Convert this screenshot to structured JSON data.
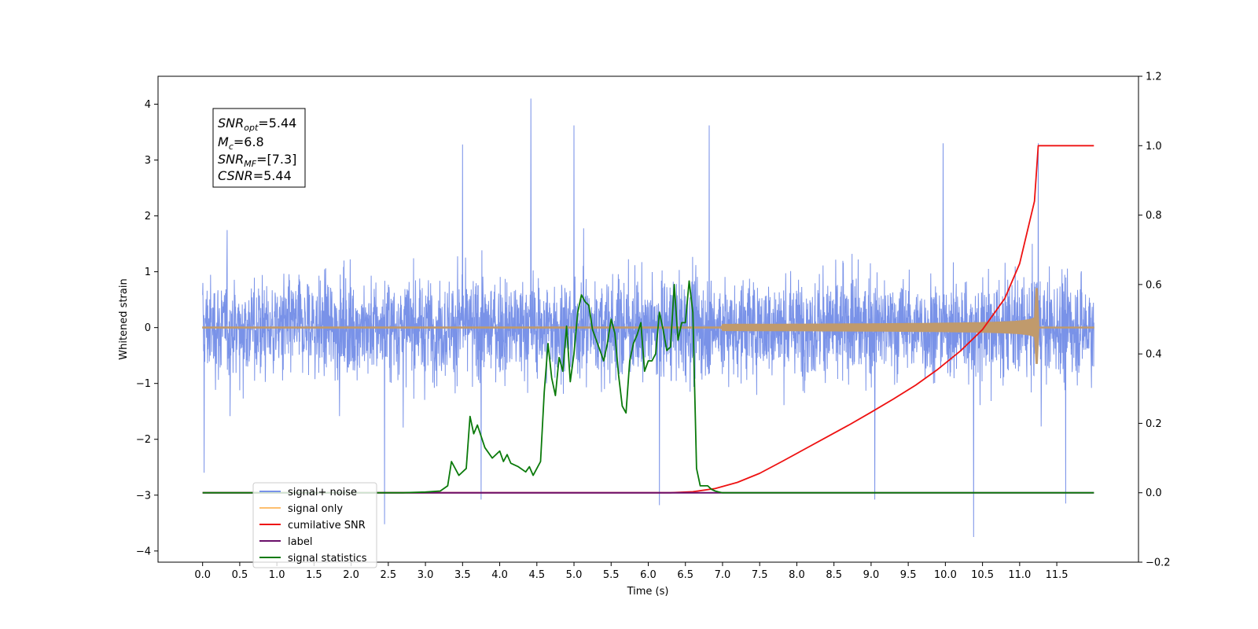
{
  "chart_data": {
    "type": "line",
    "xlabel": "Time (s)",
    "ylabel": "Whitened strain",
    "xlim": [
      -0.6,
      12.6
    ],
    "ylim": [
      -4.2,
      4.5
    ],
    "y2lim": [
      -0.2,
      1.2
    ],
    "x_ticks": [
      "0.0",
      "0.5",
      "1.0",
      "1.5",
      "2.0",
      "2.5",
      "3.0",
      "3.5",
      "4.0",
      "4.5",
      "5.0",
      "5.5",
      "6.0",
      "6.5",
      "7.0",
      "7.5",
      "8.0",
      "8.5",
      "9.0",
      "9.5",
      "10.0",
      "10.5",
      "11.0",
      "11.5"
    ],
    "y_ticks": [
      "4",
      "3",
      "2",
      "1",
      "0",
      "−1",
      "−2",
      "−3",
      "−4"
    ],
    "y2_ticks": [
      "1.2",
      "1.0",
      "0.8",
      "0.6",
      "0.4",
      "0.2",
      "0.0",
      "−0.2"
    ],
    "colors": {
      "noise": "#7992e8",
      "signal": "#c09a6c",
      "signal_legend": "#fdbf6f",
      "csnr": "#ee1111",
      "label": "#6a0f6a",
      "stats": "#0a7a0a"
    },
    "series": [
      {
        "name": "signal+ noise",
        "axis": "left",
        "x_range": [
          0,
          12
        ],
        "envelope_typical": 1.9,
        "peak_max": 4.1,
        "peak_min": -3.75
      },
      {
        "name": "signal only",
        "axis": "left",
        "x_range": [
          0,
          12
        ],
        "chirp_start": 7.0,
        "merger_time": 11.25,
        "peak_amplitude": 0.7
      },
      {
        "name": "cumilative SNR",
        "axis": "right",
        "x": [
          0,
          6.3,
          6.6,
          6.9,
          7.2,
          7.5,
          7.8,
          8.1,
          8.4,
          8.7,
          9.0,
          9.3,
          9.6,
          9.9,
          10.2,
          10.5,
          10.8,
          11.0,
          11.2,
          11.25,
          11.3,
          12.0
        ],
        "y": [
          0,
          0.0,
          0.003,
          0.012,
          0.03,
          0.056,
          0.09,
          0.125,
          0.16,
          0.195,
          0.232,
          0.27,
          0.31,
          0.356,
          0.408,
          0.47,
          0.56,
          0.66,
          0.84,
          1.0,
          1.0,
          1.0
        ]
      },
      {
        "name": "label",
        "axis": "right",
        "x": [
          0,
          12
        ],
        "y": [
          0,
          0
        ]
      },
      {
        "name": "signal statistics",
        "axis": "right",
        "x": [
          0,
          2.7,
          3.0,
          3.2,
          3.3,
          3.35,
          3.45,
          3.55,
          3.6,
          3.65,
          3.7,
          3.8,
          3.9,
          4.0,
          4.05,
          4.1,
          4.15,
          4.25,
          4.35,
          4.4,
          4.45,
          4.5,
          4.55,
          4.6,
          4.65,
          4.7,
          4.75,
          4.8,
          4.85,
          4.9,
          4.95,
          5.0,
          5.05,
          5.1,
          5.15,
          5.2,
          5.25,
          5.3,
          5.35,
          5.4,
          5.45,
          5.5,
          5.55,
          5.6,
          5.65,
          5.7,
          5.75,
          5.8,
          5.85,
          5.9,
          5.95,
          6.0,
          6.05,
          6.1,
          6.15,
          6.2,
          6.25,
          6.3,
          6.35,
          6.4,
          6.45,
          6.5,
          6.55,
          6.6,
          6.65,
          6.7,
          6.75,
          6.8,
          6.85,
          6.9,
          6.95,
          7.0,
          7.05,
          7.1,
          7.15,
          7.2,
          7.3,
          7.4,
          7.5,
          7.6,
          7.7,
          7.8,
          7.9,
          8.0,
          12.0
        ],
        "y": [
          0,
          0.0,
          0.002,
          0.005,
          0.02,
          0.09,
          0.05,
          0.07,
          0.22,
          0.17,
          0.195,
          0.13,
          0.1,
          0.12,
          0.09,
          0.11,
          0.085,
          0.075,
          0.06,
          0.075,
          0.05,
          0.07,
          0.09,
          0.29,
          0.43,
          0.33,
          0.28,
          0.39,
          0.35,
          0.48,
          0.32,
          0.4,
          0.52,
          0.57,
          0.55,
          0.54,
          0.47,
          0.44,
          0.41,
          0.38,
          0.43,
          0.5,
          0.46,
          0.34,
          0.25,
          0.23,
          0.38,
          0.43,
          0.455,
          0.49,
          0.35,
          0.38,
          0.38,
          0.4,
          0.52,
          0.47,
          0.41,
          0.42,
          0.6,
          0.44,
          0.49,
          0.49,
          0.61,
          0.52,
          0.07,
          0.02,
          0.02,
          0.02,
          0.01,
          0.005,
          0.002,
          0.0,
          0.0,
          0.0,
          0.0,
          0.0,
          0.0,
          0.0,
          0.0,
          0.0,
          0.0,
          0.0,
          0.0,
          0.0,
          0.0
        ]
      }
    ],
    "legend": {
      "placement": "lower-left",
      "entries": [
        "signal+ noise",
        "signal only",
        "cumilative SNR",
        "label",
        "signal statistics"
      ]
    }
  },
  "annotation": {
    "line1": {
      "var": "SNR",
      "sub": "opt",
      "value": "=5.44"
    },
    "line2": {
      "var": "M",
      "sub": "c",
      "value": "=6.8"
    },
    "line3": {
      "var": "SNR",
      "sub": "MF",
      "value": "=[7.3]"
    },
    "line4": {
      "var": "CSNR",
      "sub": "",
      "value": "=5.44"
    }
  }
}
